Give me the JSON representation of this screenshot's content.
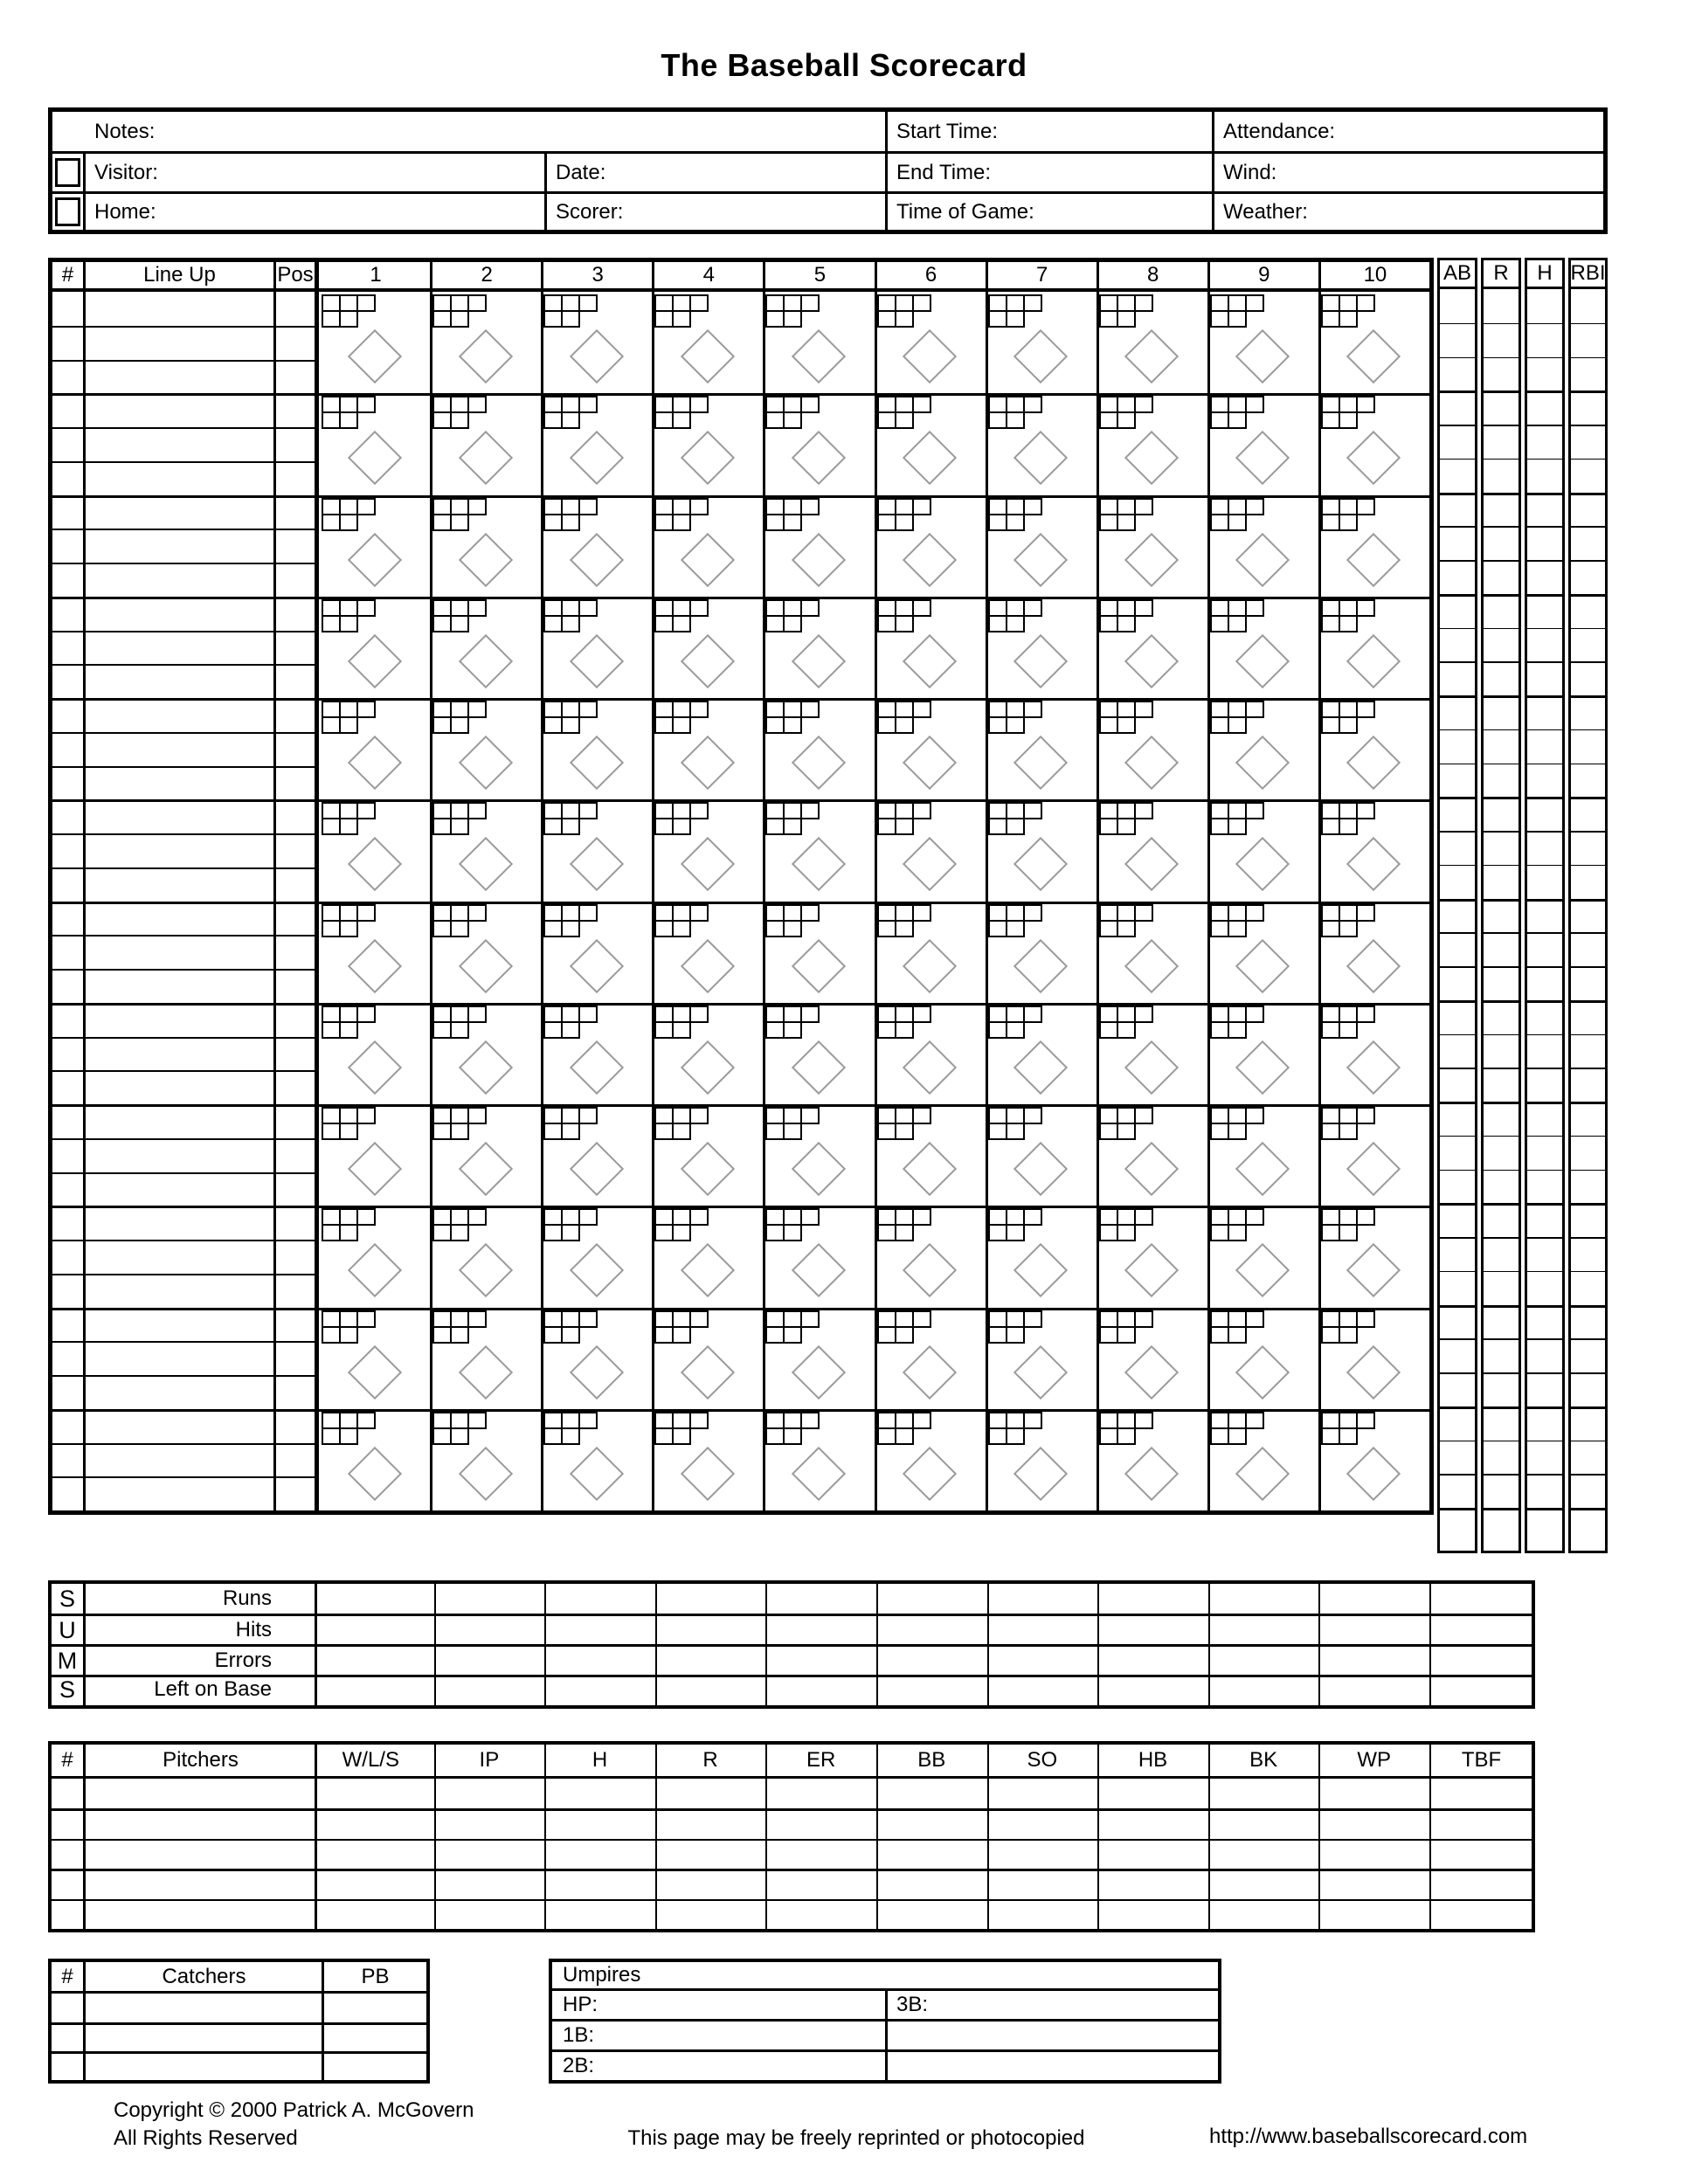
{
  "colors": {
    "ink": "#000000",
    "paper": "#ffffff",
    "diamond": "#9b9b9b"
  },
  "title": "The Baseball Scorecard",
  "info": {
    "notes_label": "Notes:",
    "start_time_label": "Start Time:",
    "attendance_label": "Attendance:",
    "visitor_label": "Visitor:",
    "date_label": "Date:",
    "end_time_label": "End Time:",
    "wind_label": "Wind:",
    "home_label": "Home:",
    "scorer_label": "Scorer:",
    "time_of_game_label": "Time of Game:",
    "weather_label": "Weather:"
  },
  "grid": {
    "number_header": "#",
    "lineup_header": "Line Up",
    "pos_header": "Pos",
    "innings": [
      "1",
      "2",
      "3",
      "4",
      "5",
      "6",
      "7",
      "8",
      "9",
      "10"
    ],
    "stat_headers": [
      "AB",
      "R",
      "H",
      "RBI"
    ],
    "lineup_slots": 12,
    "subrows_per_slot": 3,
    "pitch_count_top_boxes": 3,
    "pitch_count_bottom_boxes": 2
  },
  "sums": {
    "letters": [
      "S",
      "U",
      "M",
      "S"
    ],
    "row_labels": [
      "Runs",
      "Hits",
      "Errors",
      "Left on Base"
    ],
    "data_columns": 11
  },
  "pitchers": {
    "number_header": "#",
    "name_header": "Pitchers",
    "stat_headers": [
      "W/L/S",
      "IP",
      "H",
      "R",
      "ER",
      "BB",
      "SO",
      "HB",
      "BK",
      "WP",
      "TBF"
    ],
    "data_rows": 5
  },
  "catchers": {
    "number_header": "#",
    "name_header": "Catchers",
    "stat_headers": [
      "PB"
    ],
    "data_rows": 3
  },
  "umpires": {
    "title": "Umpires",
    "hp_label": "HP:",
    "first_base_label": "1B:",
    "second_base_label": "2B:",
    "third_base_label": "3B:"
  },
  "footer": {
    "copyright_line1": "Copyright © 2000 Patrick A. McGovern",
    "copyright_line2": "All Rights Reserved",
    "reprint_notice": "This page may be freely reprinted or photocopied",
    "website": "http://www.baseballscorecard.com"
  }
}
